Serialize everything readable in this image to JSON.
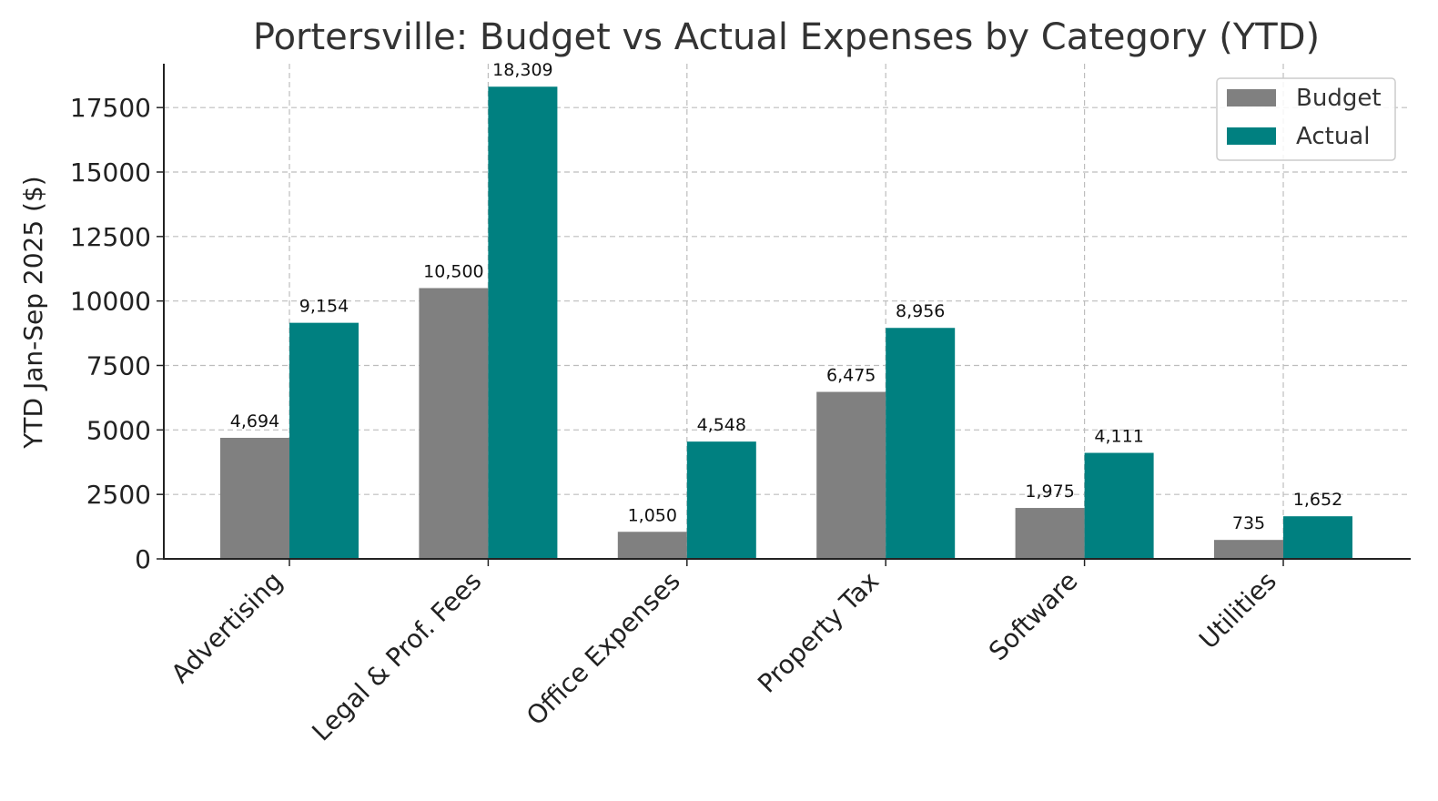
{
  "chart_data": {
    "type": "bar",
    "title": "Portersville: Budget vs Actual Expenses by Category (YTD)",
    "xlabel": "",
    "ylabel": "YTD Jan-Sep 2025 ($)",
    "categories": [
      "Advertising",
      "Legal & Prof. Fees",
      "Office Expenses",
      "Property Tax",
      "Software",
      "Utilities"
    ],
    "series": [
      {
        "name": "Budget",
        "color": "#808080",
        "values": [
          4694,
          10500,
          1050,
          6475,
          1975,
          735
        ],
        "labels": [
          "4,694",
          "10,500",
          "1,050",
          "6,475",
          "1,975",
          "735"
        ]
      },
      {
        "name": "Actual",
        "color": "#008080",
        "values": [
          9154,
          18309,
          4548,
          8956,
          4111,
          1652
        ],
        "labels": [
          "9,154",
          "18,309",
          "4,548",
          "8,956",
          "4,111",
          "1,652"
        ]
      }
    ],
    "yticks": [
      0,
      2500,
      5000,
      7500,
      10000,
      12500,
      15000,
      17500
    ],
    "ylim": [
      0,
      19200
    ],
    "grid": true,
    "legend_position": "top-right"
  }
}
